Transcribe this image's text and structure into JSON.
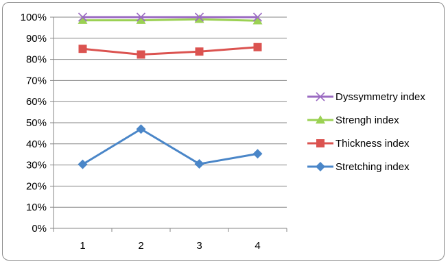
{
  "chart_data": {
    "type": "line",
    "title": "",
    "xlabel": "",
    "ylabel": "",
    "categories": [
      "1",
      "2",
      "3",
      "4"
    ],
    "y_ticks": [
      "0%",
      "10%",
      "20%",
      "30%",
      "40%",
      "50%",
      "60%",
      "70%",
      "80%",
      "90%",
      "100%"
    ],
    "ylim": [
      0,
      100
    ],
    "grid": true,
    "legend_position": "right",
    "series": [
      {
        "name": "Dyssymmetry index",
        "values": [
          100,
          100,
          100,
          100
        ],
        "color": "#9b6bc2",
        "marker": "x-marker"
      },
      {
        "name": "Strengh index",
        "values": [
          98.5,
          98.5,
          99,
          98.3
        ],
        "color": "#9bd153",
        "marker": "triangle-marker"
      },
      {
        "name": "Thickness index",
        "values": [
          85,
          82.3,
          83.7,
          85.8
        ],
        "color": "#db5350",
        "marker": "square-marker"
      },
      {
        "name": "Stretching index",
        "values": [
          30.3,
          47,
          30.5,
          35.3
        ],
        "color": "#4a86c8",
        "marker": "diamond-marker"
      }
    ]
  }
}
